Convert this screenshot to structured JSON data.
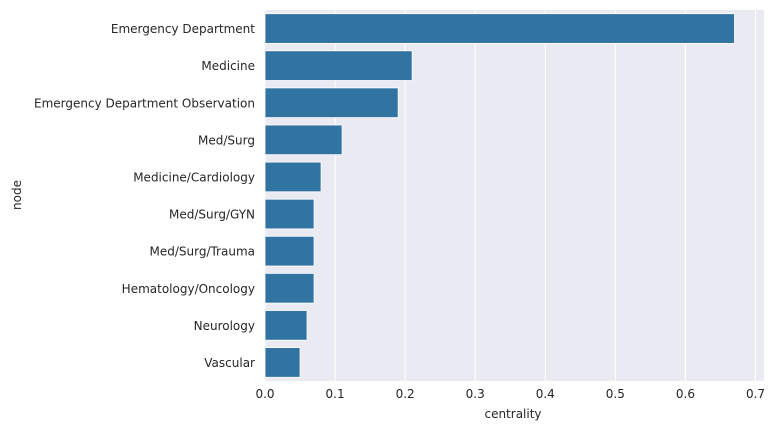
{
  "chart_data": {
    "type": "bar",
    "orientation": "horizontal",
    "categories": [
      "Emergency Department",
      "Medicine",
      "Emergency Department Observation",
      "Med/Surg",
      "Medicine/Cardiology",
      "Med/Surg/GYN",
      "Med/Surg/Trauma",
      "Hematology/Oncology",
      "Neurology",
      "Vascular"
    ],
    "values": [
      0.67,
      0.21,
      0.19,
      0.11,
      0.08,
      0.07,
      0.07,
      0.07,
      0.06,
      0.05
    ],
    "xlabel": "centrality",
    "ylabel": "node",
    "xlim": [
      0,
      0.7
    ],
    "xticks": [
      "0.0",
      "0.1",
      "0.2",
      "0.3",
      "0.4",
      "0.5",
      "0.6",
      "0.7"
    ],
    "grid": true,
    "bar_color": "#3274a1",
    "background_color": "#eaeaf2"
  }
}
